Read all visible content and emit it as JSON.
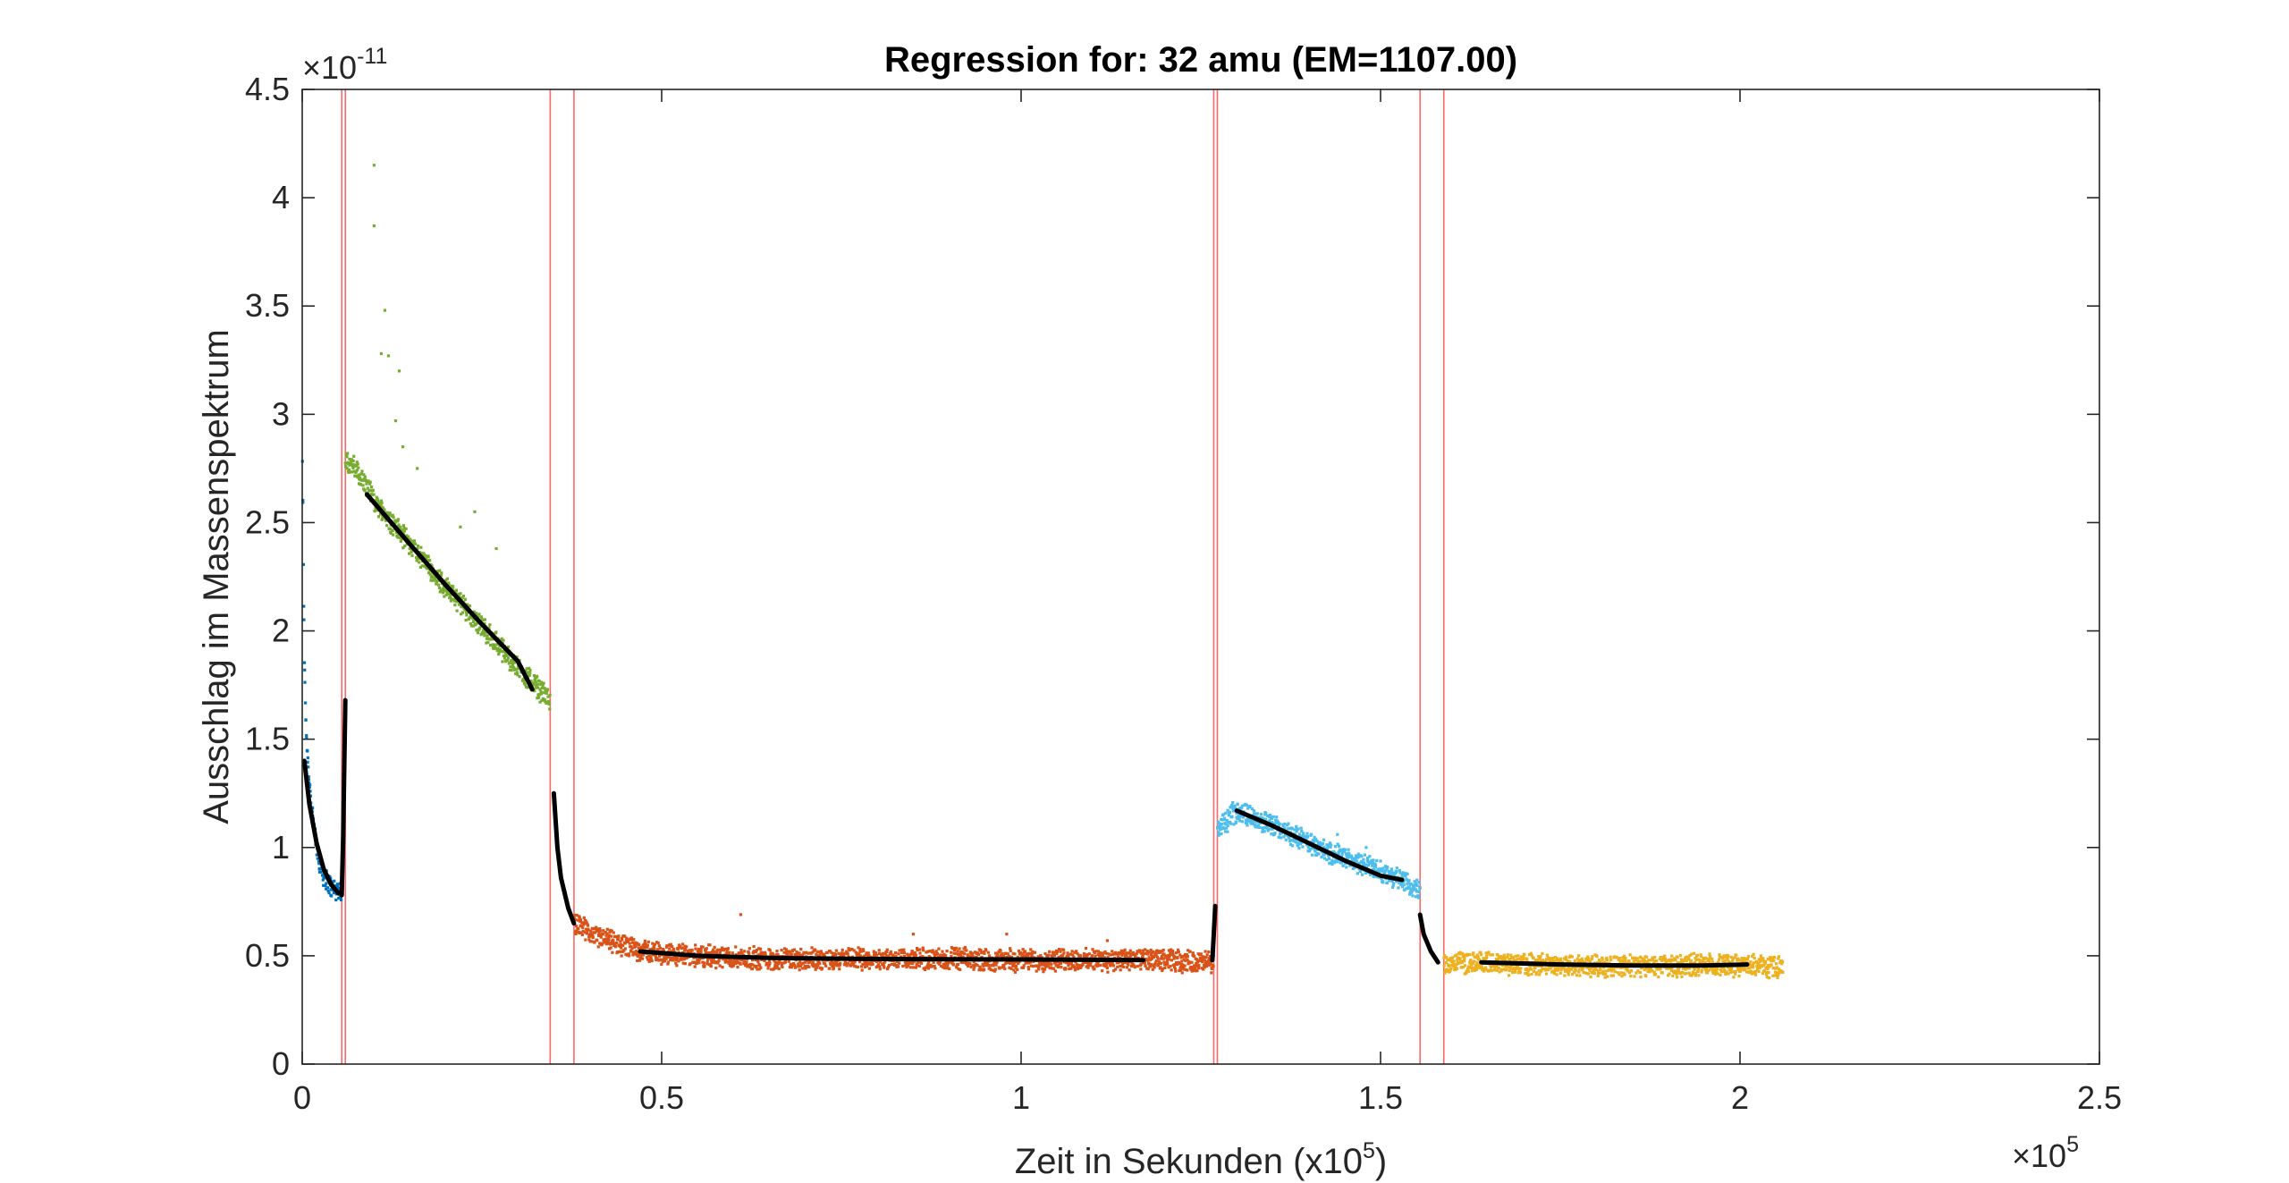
{
  "chart_data": {
    "type": "scatter",
    "title": "Regression for: 32 amu (EM=1107.00)",
    "xlabel": "Zeit in Sekunden (x10",
    "xlabel_sup": "5",
    "xlabel_end": ")",
    "ylabel": "Ausschlag im Massenspektrum",
    "x_exponent_base": "×10",
    "x_exponent": "5",
    "y_exponent_base": "×10",
    "y_exponent": "-11",
    "xlim": [
      0,
      2.5
    ],
    "ylim": [
      0,
      4.5
    ],
    "xticks": [
      "0",
      "0.5",
      "1",
      "1.5",
      "2",
      "2.5"
    ],
    "yticks": [
      "0",
      "0.5",
      "1",
      "1.5",
      "2",
      "2.5",
      "3",
      "3.5",
      "4",
      "4.5"
    ],
    "grid": false,
    "segment_boundaries": [
      0.055,
      0.06,
      0.345,
      0.378,
      1.268,
      1.273,
      1.555,
      1.588
    ],
    "boundary_color": "#ff6666",
    "series": [
      {
        "color": "#0072BD",
        "segment": [
          0.0,
          0.055
        ],
        "points": [
          [
            0.0,
            2.9
          ],
          [
            0.003,
            1.85
          ],
          [
            0.006,
            1.5
          ],
          [
            0.01,
            1.3
          ],
          [
            0.015,
            1.12
          ],
          [
            0.02,
            1.0
          ],
          [
            0.025,
            0.92
          ],
          [
            0.03,
            0.87
          ],
          [
            0.035,
            0.84
          ],
          [
            0.04,
            0.82
          ],
          [
            0.045,
            0.81
          ],
          [
            0.05,
            0.8
          ],
          [
            0.055,
            0.8
          ]
        ]
      },
      {
        "color": "#77AC30",
        "segment": [
          0.06,
          0.345
        ],
        "points": [
          [
            0.06,
            2.8
          ],
          [
            0.08,
            2.72
          ],
          [
            0.1,
            2.6
          ],
          [
            0.15,
            2.4
          ],
          [
            0.2,
            2.2
          ],
          [
            0.25,
            2.02
          ],
          [
            0.3,
            1.83
          ],
          [
            0.345,
            1.68
          ]
        ]
      },
      {
        "color": "#D95319",
        "segment": [
          0.378,
          1.268
        ],
        "points": [
          [
            0.378,
            0.66
          ],
          [
            0.4,
            0.6
          ],
          [
            0.45,
            0.54
          ],
          [
            0.5,
            0.51
          ],
          [
            0.6,
            0.49
          ],
          [
            0.7,
            0.485
          ],
          [
            0.8,
            0.485
          ],
          [
            0.9,
            0.485
          ],
          [
            1.0,
            0.48
          ],
          [
            1.1,
            0.48
          ],
          [
            1.2,
            0.48
          ],
          [
            1.26,
            0.47
          ]
        ]
      },
      {
        "color": "#4DBEEE",
        "segment": [
          1.273,
          1.555
        ],
        "points": [
          [
            1.273,
            1.08
          ],
          [
            1.3,
            1.17
          ],
          [
            1.35,
            1.1
          ],
          [
            1.4,
            1.02
          ],
          [
            1.45,
            0.95
          ],
          [
            1.5,
            0.89
          ],
          [
            1.555,
            0.8
          ]
        ]
      },
      {
        "color": "#EDB120",
        "segment": [
          1.588,
          2.06
        ],
        "points": [
          [
            1.588,
            0.47
          ],
          [
            1.65,
            0.465
          ],
          [
            1.7,
            0.46
          ],
          [
            1.8,
            0.455
          ],
          [
            1.9,
            0.455
          ],
          [
            2.0,
            0.455
          ],
          [
            2.06,
            0.45
          ]
        ]
      }
    ],
    "regression_color": "#000000",
    "regression_lines": [
      {
        "points": [
          [
            0.003,
            1.4
          ],
          [
            0.01,
            1.2
          ],
          [
            0.02,
            1.02
          ],
          [
            0.03,
            0.9
          ],
          [
            0.04,
            0.83
          ],
          [
            0.05,
            0.79
          ]
        ]
      },
      {
        "points": [
          [
            0.055,
            0.78
          ],
          [
            0.057,
            1.05
          ],
          [
            0.06,
            1.68
          ]
        ]
      },
      {
        "points": [
          [
            0.09,
            2.63
          ],
          [
            0.15,
            2.4
          ],
          [
            0.2,
            2.21
          ],
          [
            0.25,
            2.03
          ],
          [
            0.3,
            1.86
          ],
          [
            0.32,
            1.73
          ]
        ]
      },
      {
        "points": [
          [
            0.35,
            1.25
          ],
          [
            0.355,
            1.0
          ],
          [
            0.36,
            0.86
          ],
          [
            0.37,
            0.72
          ],
          [
            0.378,
            0.65
          ]
        ]
      },
      {
        "points": [
          [
            0.47,
            0.52
          ],
          [
            0.55,
            0.5
          ],
          [
            0.65,
            0.49
          ],
          [
            0.8,
            0.485
          ],
          [
            1.0,
            0.483
          ],
          [
            1.17,
            0.48
          ]
        ]
      },
      {
        "points": [
          [
            1.266,
            0.48
          ],
          [
            1.268,
            0.6
          ],
          [
            1.27,
            0.73
          ]
        ]
      },
      {
        "points": [
          [
            1.3,
            1.17
          ],
          [
            1.35,
            1.1
          ],
          [
            1.4,
            1.02
          ],
          [
            1.45,
            0.94
          ],
          [
            1.5,
            0.87
          ],
          [
            1.53,
            0.85
          ]
        ]
      },
      {
        "points": [
          [
            1.555,
            0.69
          ],
          [
            1.56,
            0.6
          ],
          [
            1.57,
            0.52
          ],
          [
            1.58,
            0.47
          ]
        ]
      },
      {
        "points": [
          [
            1.64,
            0.47
          ],
          [
            1.75,
            0.46
          ],
          [
            1.85,
            0.455
          ],
          [
            1.95,
            0.455
          ],
          [
            2.01,
            0.46
          ]
        ]
      }
    ],
    "outliers": [
      {
        "color": "#77AC30",
        "points": [
          [
            0.1,
            4.15
          ],
          [
            0.1,
            3.87
          ],
          [
            0.115,
            3.48
          ],
          [
            0.11,
            3.28
          ],
          [
            0.12,
            3.27
          ],
          [
            0.135,
            3.2
          ],
          [
            0.13,
            2.97
          ],
          [
            0.14,
            2.85
          ],
          [
            0.22,
            2.48
          ],
          [
            0.27,
            2.38
          ],
          [
            0.24,
            2.55
          ],
          [
            0.16,
            2.75
          ]
        ]
      },
      {
        "color": "#D95319",
        "points": [
          [
            0.61,
            0.69
          ],
          [
            0.85,
            0.6
          ],
          [
            0.98,
            0.6
          ],
          [
            1.12,
            0.57
          ]
        ]
      },
      {
        "color": "#4DBEEE",
        "points": [
          [
            1.48,
            1.0
          ],
          [
            1.44,
            1.06
          ]
        ]
      }
    ]
  }
}
